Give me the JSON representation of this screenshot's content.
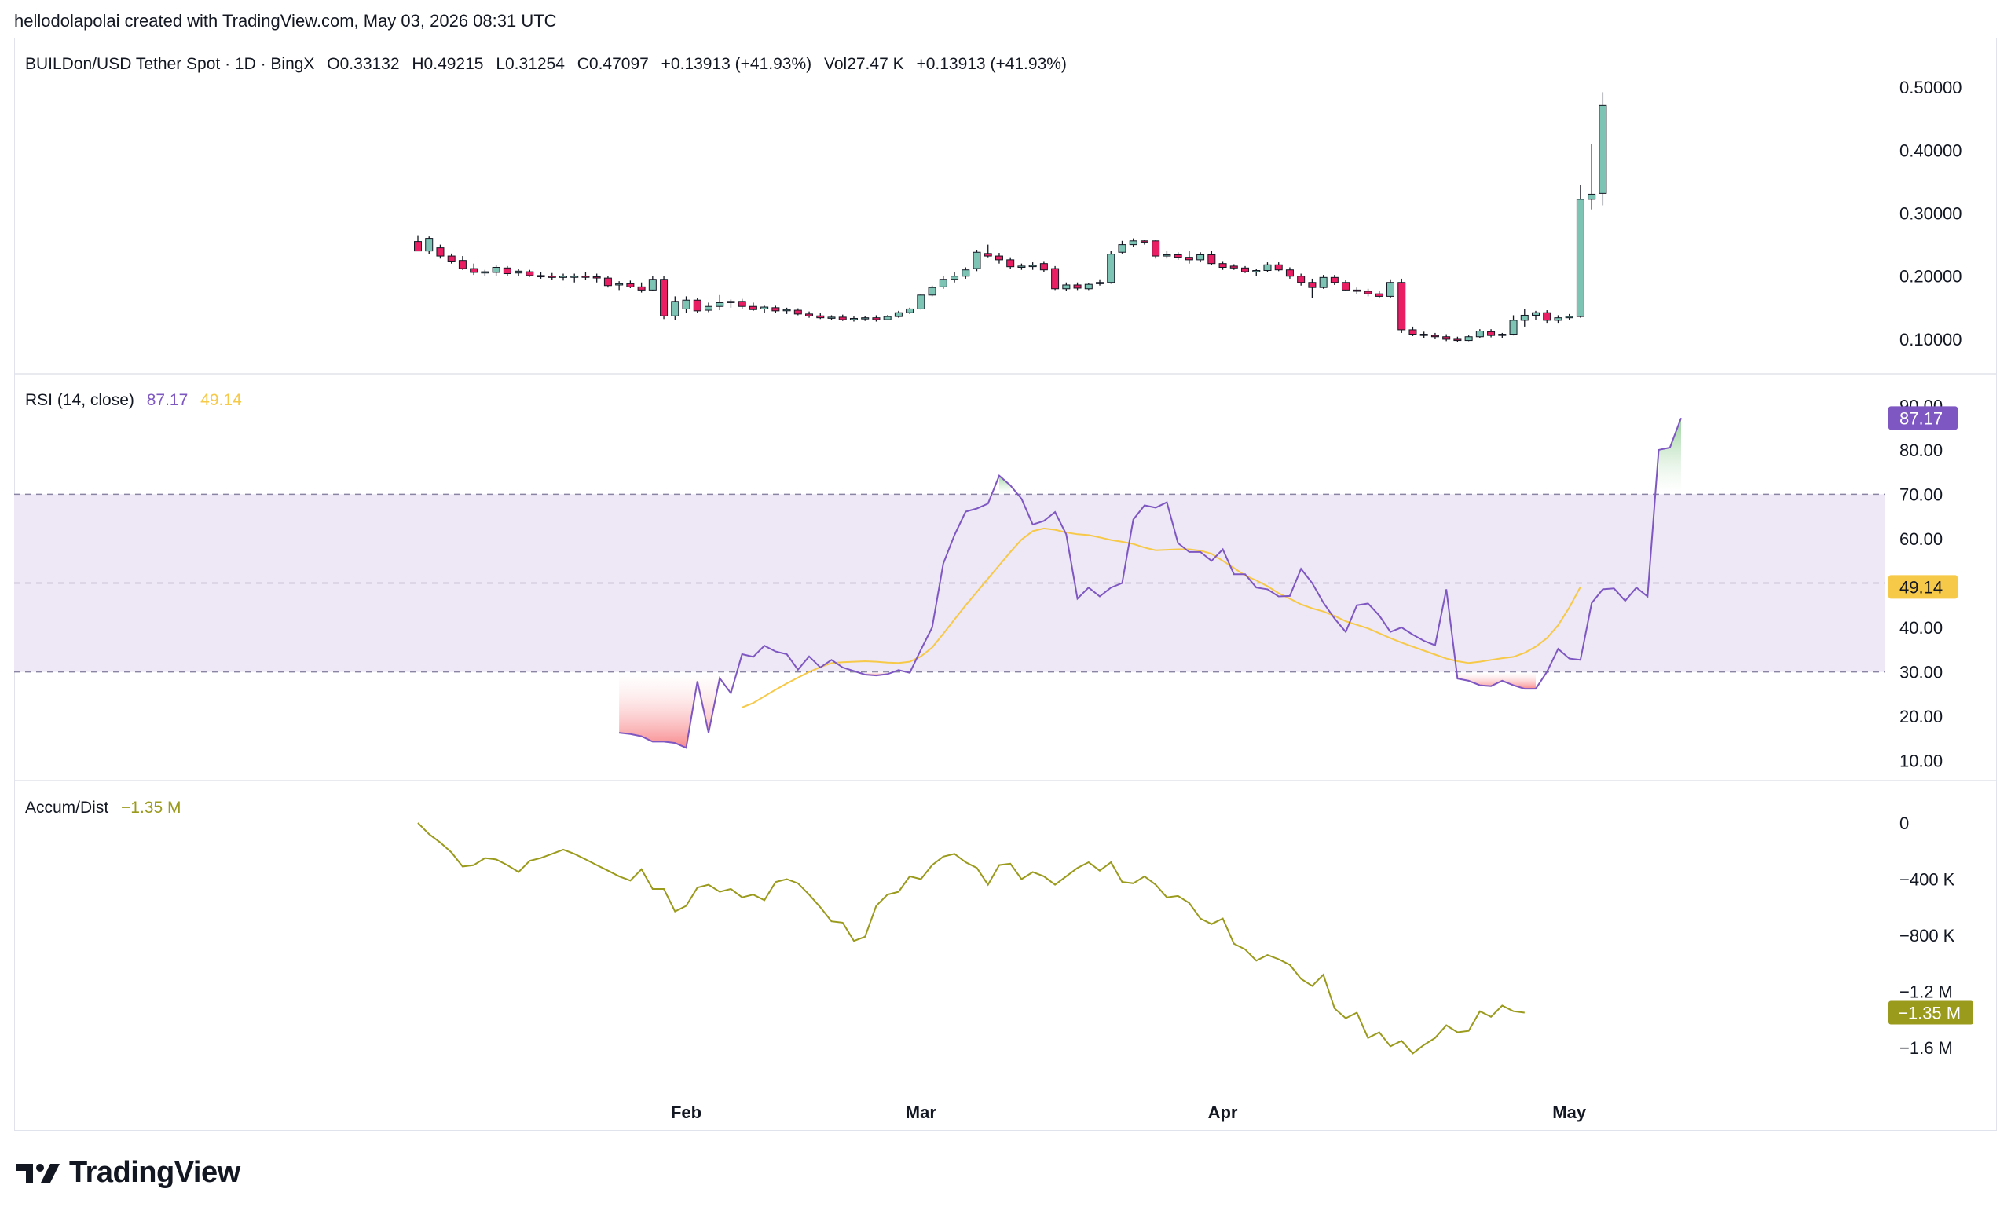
{
  "header": {
    "created_line": "hellodolapolai created with TradingView.com, May 03, 2026 08:31 UTC"
  },
  "price_legend": {
    "symbol": "BUILDon/USD Tether Spot · 1D · BingX",
    "open": "O0.33132",
    "high": "H0.49215",
    "low": "L0.31254",
    "close": "C0.47097",
    "change": "+0.13913 (+41.93%)",
    "volume": "Vol27.47 K",
    "volume_change": "+0.13913 (+41.93%)"
  },
  "rsi_legend": {
    "label": "RSI (14, close)",
    "value": "87.17",
    "ma_value": "49.14"
  },
  "ad_legend": {
    "label": "Accum/Dist",
    "value": "−1.35 M"
  },
  "brand": {
    "name": "TradingView"
  },
  "colors": {
    "up": "#7dc4b5",
    "down": "#e91e63",
    "rsi": "#7e57c2",
    "rsi_ma": "#f7c948",
    "ad": "#9a9a1c",
    "band": "#ede7f6"
  },
  "chart_data": [
    {
      "type": "candlestick",
      "title": "BUILDon/USD Tether Spot · 1D · BingX",
      "x_ticks": [
        "Feb",
        "Mar",
        "Apr",
        "May"
      ],
      "y_ticks": [
        "0.50000",
        "0.40000",
        "0.30000",
        "0.20000",
        "0.10000"
      ],
      "ylim": [
        0.08,
        0.52
      ],
      "last_value": 0.47097,
      "candles": [
        {
          "o": 0.255,
          "h": 0.265,
          "l": 0.24,
          "c": 0.24
        },
        {
          "o": 0.24,
          "h": 0.263,
          "l": 0.235,
          "c": 0.26
        },
        {
          "o": 0.245,
          "h": 0.25,
          "l": 0.228,
          "c": 0.232
        },
        {
          "o": 0.232,
          "h": 0.236,
          "l": 0.22,
          "c": 0.224
        },
        {
          "o": 0.225,
          "h": 0.232,
          "l": 0.21,
          "c": 0.212
        },
        {
          "o": 0.212,
          "h": 0.22,
          "l": 0.202,
          "c": 0.206
        },
        {
          "o": 0.205,
          "h": 0.21,
          "l": 0.2,
          "c": 0.207
        },
        {
          "o": 0.206,
          "h": 0.218,
          "l": 0.2,
          "c": 0.214
        },
        {
          "o": 0.213,
          "h": 0.216,
          "l": 0.2,
          "c": 0.204
        },
        {
          "o": 0.205,
          "h": 0.212,
          "l": 0.2,
          "c": 0.208
        },
        {
          "o": 0.207,
          "h": 0.21,
          "l": 0.199,
          "c": 0.201
        },
        {
          "o": 0.201,
          "h": 0.206,
          "l": 0.196,
          "c": 0.199
        },
        {
          "o": 0.2,
          "h": 0.205,
          "l": 0.194,
          "c": 0.198
        },
        {
          "o": 0.198,
          "h": 0.204,
          "l": 0.193,
          "c": 0.2
        },
        {
          "o": 0.199,
          "h": 0.204,
          "l": 0.19,
          "c": 0.2
        },
        {
          "o": 0.2,
          "h": 0.206,
          "l": 0.194,
          "c": 0.199
        },
        {
          "o": 0.199,
          "h": 0.204,
          "l": 0.19,
          "c": 0.198
        },
        {
          "o": 0.197,
          "h": 0.2,
          "l": 0.182,
          "c": 0.185
        },
        {
          "o": 0.186,
          "h": 0.192,
          "l": 0.178,
          "c": 0.188
        },
        {
          "o": 0.188,
          "h": 0.193,
          "l": 0.181,
          "c": 0.183
        },
        {
          "o": 0.183,
          "h": 0.19,
          "l": 0.174,
          "c": 0.178
        },
        {
          "o": 0.178,
          "h": 0.2,
          "l": 0.176,
          "c": 0.195
        },
        {
          "o": 0.195,
          "h": 0.2,
          "l": 0.132,
          "c": 0.137
        },
        {
          "o": 0.137,
          "h": 0.168,
          "l": 0.13,
          "c": 0.16
        },
        {
          "o": 0.148,
          "h": 0.168,
          "l": 0.142,
          "c": 0.162
        },
        {
          "o": 0.162,
          "h": 0.166,
          "l": 0.142,
          "c": 0.145
        },
        {
          "o": 0.146,
          "h": 0.158,
          "l": 0.143,
          "c": 0.152
        },
        {
          "o": 0.152,
          "h": 0.17,
          "l": 0.146,
          "c": 0.158
        },
        {
          "o": 0.158,
          "h": 0.163,
          "l": 0.15,
          "c": 0.16
        },
        {
          "o": 0.16,
          "h": 0.164,
          "l": 0.148,
          "c": 0.152
        },
        {
          "o": 0.152,
          "h": 0.158,
          "l": 0.145,
          "c": 0.147
        },
        {
          "o": 0.148,
          "h": 0.153,
          "l": 0.142,
          "c": 0.151
        },
        {
          "o": 0.15,
          "h": 0.153,
          "l": 0.142,
          "c": 0.145
        },
        {
          "o": 0.146,
          "h": 0.15,
          "l": 0.14,
          "c": 0.147
        },
        {
          "o": 0.146,
          "h": 0.149,
          "l": 0.138,
          "c": 0.14
        },
        {
          "o": 0.14,
          "h": 0.144,
          "l": 0.134,
          "c": 0.137
        },
        {
          "o": 0.137,
          "h": 0.141,
          "l": 0.132,
          "c": 0.134
        },
        {
          "o": 0.134,
          "h": 0.138,
          "l": 0.13,
          "c": 0.135
        },
        {
          "o": 0.135,
          "h": 0.139,
          "l": 0.129,
          "c": 0.131
        },
        {
          "o": 0.131,
          "h": 0.136,
          "l": 0.128,
          "c": 0.133
        },
        {
          "o": 0.133,
          "h": 0.137,
          "l": 0.129,
          "c": 0.134
        },
        {
          "o": 0.134,
          "h": 0.138,
          "l": 0.128,
          "c": 0.131
        },
        {
          "o": 0.131,
          "h": 0.138,
          "l": 0.13,
          "c": 0.136
        },
        {
          "o": 0.136,
          "h": 0.145,
          "l": 0.134,
          "c": 0.142
        },
        {
          "o": 0.142,
          "h": 0.15,
          "l": 0.14,
          "c": 0.148
        },
        {
          "o": 0.148,
          "h": 0.172,
          "l": 0.147,
          "c": 0.17
        },
        {
          "o": 0.17,
          "h": 0.185,
          "l": 0.168,
          "c": 0.182
        },
        {
          "o": 0.183,
          "h": 0.2,
          "l": 0.18,
          "c": 0.195
        },
        {
          "o": 0.195,
          "h": 0.206,
          "l": 0.19,
          "c": 0.2
        },
        {
          "o": 0.2,
          "h": 0.214,
          "l": 0.196,
          "c": 0.21
        },
        {
          "o": 0.212,
          "h": 0.242,
          "l": 0.208,
          "c": 0.238
        },
        {
          "o": 0.236,
          "h": 0.25,
          "l": 0.23,
          "c": 0.232
        },
        {
          "o": 0.232,
          "h": 0.237,
          "l": 0.22,
          "c": 0.226
        },
        {
          "o": 0.226,
          "h": 0.23,
          "l": 0.212,
          "c": 0.215
        },
        {
          "o": 0.214,
          "h": 0.22,
          "l": 0.21,
          "c": 0.216
        },
        {
          "o": 0.216,
          "h": 0.222,
          "l": 0.21,
          "c": 0.217
        },
        {
          "o": 0.22,
          "h": 0.224,
          "l": 0.207,
          "c": 0.21
        },
        {
          "o": 0.212,
          "h": 0.216,
          "l": 0.178,
          "c": 0.18
        },
        {
          "o": 0.18,
          "h": 0.19,
          "l": 0.176,
          "c": 0.186
        },
        {
          "o": 0.186,
          "h": 0.19,
          "l": 0.178,
          "c": 0.181
        },
        {
          "o": 0.18,
          "h": 0.189,
          "l": 0.178,
          "c": 0.187
        },
        {
          "o": 0.188,
          "h": 0.195,
          "l": 0.185,
          "c": 0.19
        },
        {
          "o": 0.19,
          "h": 0.24,
          "l": 0.188,
          "c": 0.235
        },
        {
          "o": 0.238,
          "h": 0.256,
          "l": 0.236,
          "c": 0.25
        },
        {
          "o": 0.25,
          "h": 0.26,
          "l": 0.246,
          "c": 0.256
        },
        {
          "o": 0.256,
          "h": 0.258,
          "l": 0.25,
          "c": 0.254
        },
        {
          "o": 0.256,
          "h": 0.258,
          "l": 0.228,
          "c": 0.232
        },
        {
          "o": 0.232,
          "h": 0.24,
          "l": 0.228,
          "c": 0.234
        },
        {
          "o": 0.234,
          "h": 0.238,
          "l": 0.226,
          "c": 0.23
        },
        {
          "o": 0.23,
          "h": 0.24,
          "l": 0.22,
          "c": 0.226
        },
        {
          "o": 0.226,
          "h": 0.238,
          "l": 0.222,
          "c": 0.234
        },
        {
          "o": 0.234,
          "h": 0.24,
          "l": 0.218,
          "c": 0.22
        },
        {
          "o": 0.22,
          "h": 0.224,
          "l": 0.21,
          "c": 0.214
        },
        {
          "o": 0.216,
          "h": 0.219,
          "l": 0.21,
          "c": 0.213
        },
        {
          "o": 0.213,
          "h": 0.216,
          "l": 0.205,
          "c": 0.207
        },
        {
          "o": 0.207,
          "h": 0.212,
          "l": 0.2,
          "c": 0.209
        },
        {
          "o": 0.209,
          "h": 0.222,
          "l": 0.206,
          "c": 0.218
        },
        {
          "o": 0.218,
          "h": 0.222,
          "l": 0.208,
          "c": 0.21
        },
        {
          "o": 0.21,
          "h": 0.214,
          "l": 0.196,
          "c": 0.2
        },
        {
          "o": 0.2,
          "h": 0.204,
          "l": 0.185,
          "c": 0.19
        },
        {
          "o": 0.19,
          "h": 0.196,
          "l": 0.166,
          "c": 0.182
        },
        {
          "o": 0.182,
          "h": 0.202,
          "l": 0.18,
          "c": 0.198
        },
        {
          "o": 0.198,
          "h": 0.202,
          "l": 0.186,
          "c": 0.19
        },
        {
          "o": 0.19,
          "h": 0.194,
          "l": 0.176,
          "c": 0.178
        },
        {
          "o": 0.178,
          "h": 0.182,
          "l": 0.172,
          "c": 0.176
        },
        {
          "o": 0.176,
          "h": 0.18,
          "l": 0.168,
          "c": 0.172
        },
        {
          "o": 0.172,
          "h": 0.176,
          "l": 0.165,
          "c": 0.168
        },
        {
          "o": 0.168,
          "h": 0.195,
          "l": 0.166,
          "c": 0.19
        },
        {
          "o": 0.19,
          "h": 0.196,
          "l": 0.11,
          "c": 0.115
        },
        {
          "o": 0.115,
          "h": 0.12,
          "l": 0.105,
          "c": 0.108
        },
        {
          "o": 0.108,
          "h": 0.112,
          "l": 0.102,
          "c": 0.106
        },
        {
          "o": 0.106,
          "h": 0.11,
          "l": 0.1,
          "c": 0.104
        },
        {
          "o": 0.104,
          "h": 0.108,
          "l": 0.097,
          "c": 0.1
        },
        {
          "o": 0.1,
          "h": 0.104,
          "l": 0.095,
          "c": 0.098
        },
        {
          "o": 0.098,
          "h": 0.106,
          "l": 0.097,
          "c": 0.104
        },
        {
          "o": 0.104,
          "h": 0.116,
          "l": 0.102,
          "c": 0.113
        },
        {
          "o": 0.112,
          "h": 0.116,
          "l": 0.103,
          "c": 0.106
        },
        {
          "o": 0.106,
          "h": 0.11,
          "l": 0.102,
          "c": 0.108
        },
        {
          "o": 0.108,
          "h": 0.138,
          "l": 0.106,
          "c": 0.13
        },
        {
          "o": 0.13,
          "h": 0.148,
          "l": 0.12,
          "c": 0.138
        },
        {
          "o": 0.138,
          "h": 0.145,
          "l": 0.13,
          "c": 0.142
        },
        {
          "o": 0.142,
          "h": 0.146,
          "l": 0.126,
          "c": 0.13
        },
        {
          "o": 0.13,
          "h": 0.138,
          "l": 0.126,
          "c": 0.134
        },
        {
          "o": 0.134,
          "h": 0.14,
          "l": 0.13,
          "c": 0.136
        },
        {
          "o": 0.136,
          "h": 0.345,
          "l": 0.134,
          "c": 0.322
        },
        {
          "o": 0.322,
          "h": 0.41,
          "l": 0.306,
          "c": 0.33
        },
        {
          "o": 0.33132,
          "h": 0.49215,
          "l": 0.31254,
          "c": 0.47097
        }
      ]
    },
    {
      "type": "line",
      "title": "RSI (14, close)",
      "y_ticks": [
        "90.00",
        "80.00",
        "70.00",
        "60.00",
        "50.00",
        "40.00",
        "30.00",
        "20.00",
        "10.00"
      ],
      "ylim": [
        8,
        92
      ],
      "bands": [
        30,
        50,
        70
      ],
      "series": [
        {
          "name": "RSI",
          "start_index": 18,
          "values": [
            16.3,
            16,
            15.5,
            14.3,
            14.3,
            14,
            12.9,
            27.9,
            16.3,
            28.6,
            25.2,
            34,
            33.4,
            35.9,
            34.6,
            34,
            30.5,
            33.5,
            31,
            32.7,
            31,
            30.2,
            29.4,
            29.2,
            29.5,
            30.4,
            29.8,
            35,
            40,
            54.4,
            60.8,
            66.1,
            66.8,
            67.9,
            74.2,
            72,
            69,
            63.2,
            64,
            66,
            61,
            46.5,
            49,
            47,
            49,
            50,
            64.3,
            67.5,
            67,
            68.2,
            59,
            57,
            57,
            55,
            57.6,
            52,
            52,
            49,
            48.6,
            47,
            47.1,
            53.2,
            50,
            45.6,
            42,
            39,
            45,
            45.4,
            42.7,
            39,
            40,
            38.4,
            37,
            36,
            48.6,
            28.5,
            28,
            27,
            26.8,
            28,
            27,
            26.2,
            26.2,
            30,
            35.2,
            33,
            32.7,
            45.5,
            48.6,
            48.8,
            46,
            49,
            47,
            80,
            80.5,
            87.17
          ]
        },
        {
          "name": "RSI-based MA",
          "start_index": 29,
          "values": [
            22,
            23,
            24.5,
            26,
            27.4,
            28.7,
            30,
            31.1,
            32,
            32.2,
            32.3,
            32.4,
            32.3,
            32.1,
            32,
            32.3,
            33.5,
            35.5,
            38.6,
            41.8,
            45,
            48,
            51,
            54,
            57,
            59.8,
            61.7,
            62.3,
            62,
            61.4,
            61,
            60.8,
            60.3,
            59.7,
            59.3,
            58.8,
            58,
            57.4,
            57.5,
            57.6,
            57.6,
            57.3,
            56.6,
            55,
            53.4,
            51.7,
            50.6,
            49.3,
            47.7,
            46.5,
            45.2,
            44.3,
            43.6,
            42.6,
            41.4,
            40.6,
            39.8,
            38.7,
            37.6,
            36.6,
            35.7,
            34.8,
            33.9,
            33,
            32.4,
            32,
            32.3,
            32.7,
            33.1,
            33.4,
            34.3,
            35.7,
            37.6,
            40.5,
            44.5,
            49.14
          ]
        }
      ]
    },
    {
      "type": "line",
      "title": "Accum/Dist",
      "y_ticks": [
        "0",
        "−400 K",
        "−800 K",
        "−1.2 M",
        "−1.6 M"
      ],
      "ylim": [
        -1.8,
        0.1
      ],
      "y_unit": "M",
      "series": [
        {
          "name": "Accum/Dist",
          "start_index": 0,
          "values": [
            0,
            -0.08,
            -0.14,
            -0.21,
            -0.31,
            -0.3,
            -0.25,
            -0.26,
            -0.3,
            -0.35,
            -0.27,
            -0.25,
            -0.22,
            -0.19,
            -0.22,
            -0.26,
            -0.3,
            -0.34,
            -0.38,
            -0.41,
            -0.33,
            -0.47,
            -0.47,
            -0.63,
            -0.59,
            -0.46,
            -0.44,
            -0.49,
            -0.47,
            -0.53,
            -0.51,
            -0.55,
            -0.42,
            -0.4,
            -0.43,
            -0.51,
            -0.6,
            -0.7,
            -0.71,
            -0.84,
            -0.81,
            -0.59,
            -0.51,
            -0.49,
            -0.38,
            -0.4,
            -0.3,
            -0.24,
            -0.22,
            -0.28,
            -0.32,
            -0.44,
            -0.3,
            -0.29,
            -0.4,
            -0.35,
            -0.38,
            -0.44,
            -0.38,
            -0.32,
            -0.28,
            -0.34,
            -0.28,
            -0.42,
            -0.43,
            -0.38,
            -0.44,
            -0.53,
            -0.52,
            -0.57,
            -0.68,
            -0.72,
            -0.68,
            -0.86,
            -0.9,
            -0.98,
            -0.94,
            -0.97,
            -1.01,
            -1.11,
            -1.16,
            -1.08,
            -1.32,
            -1.39,
            -1.35,
            -1.53,
            -1.49,
            -1.59,
            -1.55,
            -1.64,
            -1.58,
            -1.53,
            -1.44,
            -1.49,
            -1.48,
            -1.34,
            -1.38,
            -1.3,
            -1.34,
            -1.35
          ]
        }
      ]
    }
  ]
}
